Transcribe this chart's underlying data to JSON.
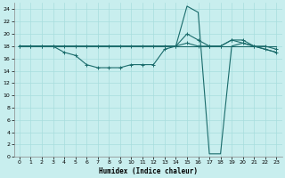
{
  "xlabel": "Humidex (Indice chaleur)",
  "bg_color": "#c8eeee",
  "grid_color": "#a8dddd",
  "line_color": "#1a6b6b",
  "xlim": [
    -0.5,
    23.5
  ],
  "ylim": [
    0,
    25
  ],
  "xticks": [
    0,
    1,
    2,
    3,
    4,
    5,
    6,
    7,
    8,
    9,
    10,
    11,
    12,
    13,
    14,
    15,
    16,
    17,
    18,
    19,
    20,
    21,
    22,
    23
  ],
  "yticks": [
    0,
    2,
    4,
    6,
    8,
    10,
    12,
    14,
    16,
    18,
    20,
    22,
    24
  ],
  "line1_x": [
    0,
    1,
    2,
    3,
    4,
    5,
    6,
    7,
    8,
    9,
    10,
    11,
    12,
    13,
    14,
    15,
    16,
    17,
    18,
    19,
    20,
    21,
    22,
    23
  ],
  "line1_y": [
    18,
    18,
    18,
    18,
    18,
    18,
    18,
    18,
    18,
    18,
    18,
    18,
    18,
    18,
    18,
    18,
    18,
    18,
    18,
    18,
    18,
    18,
    18,
    18
  ],
  "line2_x": [
    0,
    1,
    2,
    3,
    4,
    5,
    6,
    7,
    8,
    9,
    10,
    11,
    12,
    13,
    14,
    15,
    16,
    17,
    18,
    19,
    20,
    21,
    22,
    23
  ],
  "line2_y": [
    18,
    18,
    18,
    18,
    17,
    16.5,
    15,
    14.5,
    14.5,
    14.5,
    15,
    15,
    15,
    17.5,
    18,
    20,
    19,
    18,
    18,
    19,
    19,
    18,
    18,
    17.5
  ],
  "line3_x": [
    0,
    1,
    2,
    3,
    4,
    5,
    6,
    7,
    8,
    9,
    10,
    11,
    12,
    13,
    14,
    15,
    16,
    17,
    18,
    19,
    20,
    21,
    22,
    23
  ],
  "line3_y": [
    18,
    18,
    18,
    18,
    18,
    18,
    18,
    18,
    18,
    18,
    18,
    18,
    18,
    18,
    18,
    24.5,
    23.5,
    0.5,
    0.5,
    18,
    18.5,
    18,
    17.5,
    17
  ],
  "line4_x": [
    0,
    1,
    2,
    3,
    4,
    5,
    6,
    7,
    8,
    9,
    10,
    11,
    12,
    13,
    14,
    15,
    16,
    17,
    18,
    19,
    20,
    21,
    22,
    23
  ],
  "line4_y": [
    18,
    18,
    18,
    18,
    18,
    18,
    18,
    18,
    18,
    18,
    18,
    18,
    18,
    18,
    18,
    18.5,
    18,
    18,
    18,
    19,
    18.5,
    18,
    17.5,
    17
  ]
}
